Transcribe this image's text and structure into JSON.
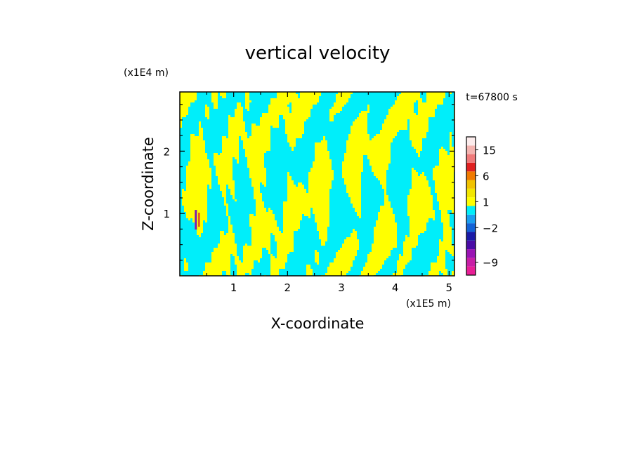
{
  "chart_data": {
    "type": "heatmap",
    "title": "vertical velocity",
    "xlabel": "X-coordinate",
    "ylabel": "Z-coordinate",
    "x_scale_label": "(x1E5 m)",
    "y_scale_label": "(x1E4 m)",
    "time_label": "t=67800 s",
    "xlim": [
      0.0,
      5.1
    ],
    "ylim": [
      0.0,
      2.95
    ],
    "x_ticks": [
      1,
      2,
      3,
      4,
      5
    ],
    "y_ticks": [
      1,
      2
    ],
    "colorbar": {
      "tick_labels": [
        "15",
        "6",
        "1",
        "−2",
        "−9"
      ],
      "tick_values": [
        15,
        6,
        1,
        -2,
        -9
      ],
      "levels": [
        {
          "value": -12,
          "color": "#e81e96"
        },
        {
          "value": -9,
          "color": "#c81ea6"
        },
        {
          "value": -6,
          "color": "#9a14b4"
        },
        {
          "value": -4,
          "color": "#4a0ca6"
        },
        {
          "value": -3,
          "color": "#1a1aa6"
        },
        {
          "value": -2,
          "color": "#1262d6"
        },
        {
          "value": -1,
          "color": "#1a9ff0"
        },
        {
          "value": 0,
          "color": "#00eefa"
        },
        {
          "value": 1,
          "color": "#ffff00"
        },
        {
          "value": 2,
          "color": "#f2e600"
        },
        {
          "value": 3,
          "color": "#f0c200"
        },
        {
          "value": 6,
          "color": "#f07a00"
        },
        {
          "value": 9,
          "color": "#e02020"
        },
        {
          "value": 12,
          "color": "#f07a7a"
        },
        {
          "value": 15,
          "color": "#f4b4b0"
        },
        {
          "value": 20,
          "color": "#fcecec"
        }
      ]
    },
    "field_colors": {
      "positive": "#ffff00",
      "negative": "#00eefa",
      "strong_neg": "#7a1ab4",
      "strong_pos": "#e02020"
    }
  }
}
